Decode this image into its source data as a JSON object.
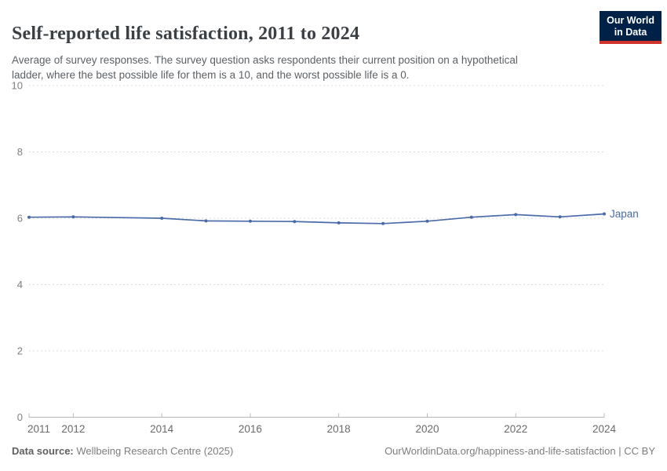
{
  "chart_data": {
    "type": "line",
    "title": "Self-reported life satisfaction, 2011 to 2024",
    "subtitle_lines": [
      "Average of survey responses. The survey question asks respondents their current position on a hypothetical",
      "ladder, where the best possible life for them is a 10, and the worst possible life is a 0."
    ],
    "xlabel": "",
    "ylabel": "",
    "xlim": [
      2011,
      2024
    ],
    "ylim": [
      0,
      10
    ],
    "x_ticks": [
      2011,
      2012,
      2014,
      2016,
      2018,
      2020,
      2022,
      2024
    ],
    "y_ticks": [
      0,
      2,
      4,
      6,
      8,
      10
    ],
    "grid": "horizontal-dashed",
    "legend_position": "line-end-label",
    "series": [
      {
        "name": "Japan",
        "color": "#4a6ba8",
        "points": [
          [
            2011,
            6.03
          ],
          [
            2012,
            6.04
          ],
          [
            2014,
            6.0
          ],
          [
            2015,
            5.92
          ],
          [
            2016,
            5.91
          ],
          [
            2017,
            5.9
          ],
          [
            2018,
            5.86
          ],
          [
            2019,
            5.84
          ],
          [
            2020,
            5.91
          ],
          [
            2021,
            6.03
          ],
          [
            2022,
            6.11
          ],
          [
            2023,
            6.04
          ],
          [
            2024,
            6.13
          ]
        ],
        "note": "no data point for 2013; line connects 2012 to 2014"
      }
    ]
  },
  "logo": {
    "line1": "Our World",
    "line2": "in Data",
    "bg_color": "#002147",
    "accent_color": "#d0342c"
  },
  "footer": {
    "data_source_label": "Data source:",
    "data_source_value": "Wellbeing Research Centre (2025)",
    "url": "OurWorldinData.org/happiness-and-life-satisfaction",
    "separator": "|",
    "license": "CC BY"
  },
  "style_colors": {
    "grid_line": "#dcdcdc",
    "axis_line": "#b8b8b8",
    "y_label": "#808080",
    "x_label": "#6b6b6b",
    "title": "#3b4045",
    "subtitle": "#5c6166"
  }
}
